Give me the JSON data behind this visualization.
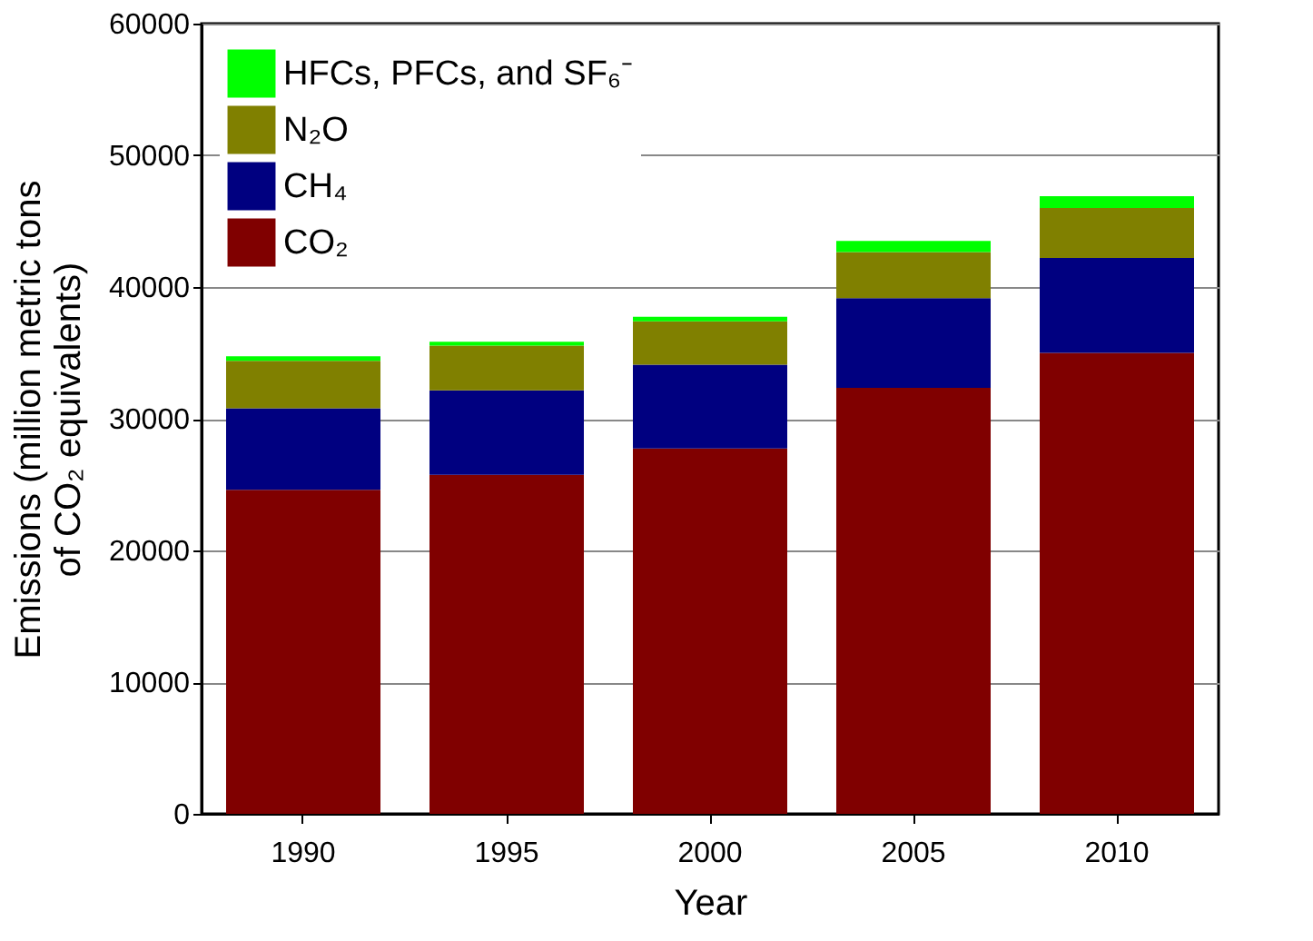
{
  "chart_data": {
    "type": "bar",
    "stacked": true,
    "xlabel": "Year",
    "ylabel": "Emissions (million metric tons\nof CO₂ equivalents)",
    "categories": [
      "1990",
      "1995",
      "2000",
      "2005",
      "2010"
    ],
    "series": [
      {
        "name": "CO₂",
        "color": "#800000",
        "values": [
          24600,
          25750,
          27750,
          32350,
          35000
        ]
      },
      {
        "name": "CH₄",
        "color": "#000080",
        "values": [
          6200,
          6400,
          6350,
          6800,
          7200
        ]
      },
      {
        "name": "N₂O",
        "color": "#808000",
        "values": [
          3600,
          3400,
          3300,
          3500,
          3800
        ]
      },
      {
        "name": "HFCs, PFCs, and SF₆⁻",
        "color": "#00ff00",
        "values": [
          350,
          300,
          350,
          850,
          900
        ]
      }
    ],
    "ylim": [
      0,
      60000
    ],
    "yticks": [
      0,
      10000,
      20000,
      30000,
      40000,
      50000,
      60000
    ],
    "grid": "y",
    "legend": "top left"
  }
}
